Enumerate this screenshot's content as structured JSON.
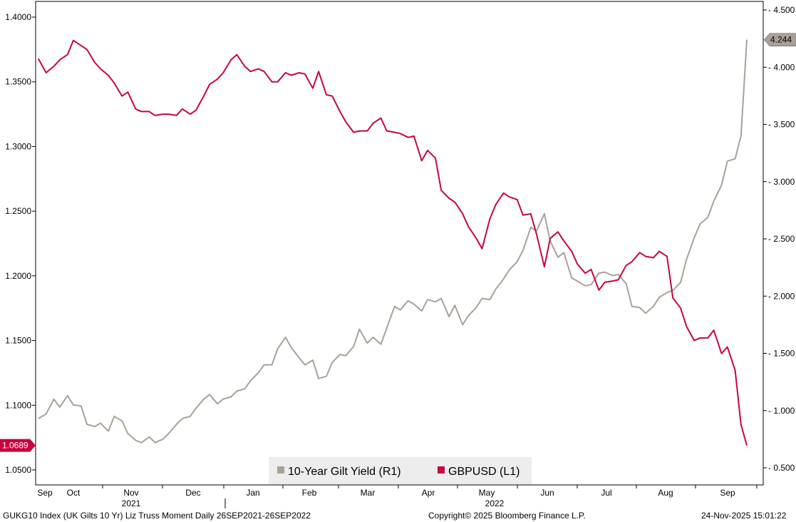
{
  "chart_data": {
    "type": "line",
    "x_months": [
      "Sep",
      "Oct",
      "Nov",
      "Dec",
      "Jan",
      "Feb",
      "Mar",
      "Apr",
      "May",
      "Jun",
      "Jul",
      "Aug",
      "Sep"
    ],
    "x_years": [
      "2021",
      "2022"
    ],
    "x_range": [
      "2021-09-26",
      "2022-09-26"
    ],
    "left_axis": {
      "ticks": [
        "1.4000",
        "1.3500",
        "1.3000",
        "1.2500",
        "1.2000",
        "1.1500",
        "1.1000",
        "1.0500"
      ],
      "ylim": [
        1.04,
        1.415
      ]
    },
    "right_axis": {
      "ticks": [
        "4.500",
        "4.000",
        "3.500",
        "3.000",
        "2.500",
        "2.000",
        "1.500",
        "1.000",
        "0.500"
      ],
      "ylim": [
        0.4,
        4.6
      ]
    },
    "series": [
      {
        "name": "10-Year Gilt Yield (R1)",
        "axis": "right",
        "color": "#a9a196",
        "last_label": "4.244",
        "x": [
          "2021-09-27",
          "2021-10-01",
          "2021-10-05",
          "2021-10-08",
          "2021-10-12",
          "2021-10-15",
          "2021-10-19",
          "2021-10-22",
          "2021-10-26",
          "2021-10-29",
          "2021-11-02",
          "2021-11-05",
          "2021-11-09",
          "2021-11-12",
          "2021-11-16",
          "2021-11-19",
          "2021-11-23",
          "2021-11-26",
          "2021-11-30",
          "2021-12-03",
          "2021-12-07",
          "2021-12-10",
          "2021-12-14",
          "2021-12-17",
          "2021-12-21",
          "2021-12-24",
          "2021-12-28",
          "2021-12-31",
          "2022-01-04",
          "2022-01-07",
          "2022-01-11",
          "2022-01-14",
          "2022-01-18",
          "2022-01-21",
          "2022-01-25",
          "2022-01-28",
          "2022-02-01",
          "2022-02-04",
          "2022-02-08",
          "2022-02-11",
          "2022-02-15",
          "2022-02-18",
          "2022-02-22",
          "2022-02-25",
          "2022-03-01",
          "2022-03-04",
          "2022-03-08",
          "2022-03-11",
          "2022-03-15",
          "2022-03-18",
          "2022-03-22",
          "2022-03-25",
          "2022-03-29",
          "2022-04-01",
          "2022-04-05",
          "2022-04-08",
          "2022-04-12",
          "2022-04-15",
          "2022-04-19",
          "2022-04-22",
          "2022-04-26",
          "2022-04-29",
          "2022-05-03",
          "2022-05-06",
          "2022-05-10",
          "2022-05-13",
          "2022-05-17",
          "2022-05-20",
          "2022-05-24",
          "2022-05-27",
          "2022-05-31",
          "2022-06-03",
          "2022-06-07",
          "2022-06-10",
          "2022-06-14",
          "2022-06-17",
          "2022-06-21",
          "2022-06-24",
          "2022-06-28",
          "2022-07-01",
          "2022-07-05",
          "2022-07-08",
          "2022-07-12",
          "2022-07-15",
          "2022-07-19",
          "2022-07-22",
          "2022-07-26",
          "2022-07-29",
          "2022-08-02",
          "2022-08-05",
          "2022-08-09",
          "2022-08-12",
          "2022-08-16",
          "2022-08-19",
          "2022-08-23",
          "2022-08-26",
          "2022-08-30",
          "2022-09-02",
          "2022-09-06",
          "2022-09-09",
          "2022-09-13",
          "2022-09-16",
          "2022-09-20",
          "2022-09-23",
          "2022-09-26"
        ],
        "y": [
          0.93,
          0.97,
          1.1,
          1.03,
          1.13,
          1.05,
          1.04,
          0.88,
          0.86,
          0.89,
          0.82,
          0.95,
          0.91,
          0.8,
          0.74,
          0.72,
          0.77,
          0.72,
          0.75,
          0.8,
          0.88,
          0.93,
          0.95,
          1.02,
          1.1,
          1.14,
          1.06,
          1.1,
          1.12,
          1.17,
          1.19,
          1.26,
          1.33,
          1.4,
          1.4,
          1.54,
          1.64,
          1.55,
          1.46,
          1.4,
          1.44,
          1.28,
          1.3,
          1.42,
          1.49,
          1.48,
          1.56,
          1.71,
          1.59,
          1.64,
          1.58,
          1.72,
          1.91,
          1.88,
          1.96,
          1.93,
          1.87,
          1.97,
          1.95,
          1.98,
          1.82,
          1.92,
          1.75,
          1.83,
          1.9,
          1.98,
          1.97,
          2.06,
          2.15,
          2.23,
          2.3,
          2.4,
          2.6,
          2.57,
          2.72,
          2.48,
          2.34,
          2.38,
          2.16,
          2.13,
          2.09,
          2.1,
          2.2,
          2.21,
          2.18,
          2.19,
          2.11,
          1.91,
          1.9,
          1.85,
          1.91,
          1.99,
          2.03,
          2.05,
          2.12,
          2.32,
          2.51,
          2.63,
          2.69,
          2.83,
          2.97,
          3.18,
          3.2,
          3.4,
          4.24
        ]
      },
      {
        "name": "GBPUSD (L1)",
        "axis": "left",
        "color": "#c7053e",
        "last_label": "1.0689",
        "x": [
          "2021-09-27",
          "2021-10-01",
          "2021-10-05",
          "2021-10-08",
          "2021-10-12",
          "2021-10-15",
          "2021-10-19",
          "2021-10-22",
          "2021-10-26",
          "2021-10-29",
          "2021-11-02",
          "2021-11-05",
          "2021-11-09",
          "2021-11-12",
          "2021-11-16",
          "2021-11-19",
          "2021-11-23",
          "2021-11-26",
          "2021-11-30",
          "2021-12-03",
          "2021-12-07",
          "2021-12-10",
          "2021-12-14",
          "2021-12-17",
          "2021-12-21",
          "2021-12-24",
          "2021-12-28",
          "2021-12-31",
          "2022-01-04",
          "2022-01-07",
          "2022-01-11",
          "2022-01-14",
          "2022-01-18",
          "2022-01-21",
          "2022-01-25",
          "2022-01-28",
          "2022-02-01",
          "2022-02-04",
          "2022-02-08",
          "2022-02-11",
          "2022-02-15",
          "2022-02-18",
          "2022-02-22",
          "2022-02-25",
          "2022-03-01",
          "2022-03-04",
          "2022-03-08",
          "2022-03-11",
          "2022-03-15",
          "2022-03-18",
          "2022-03-22",
          "2022-03-25",
          "2022-03-29",
          "2022-04-01",
          "2022-04-05",
          "2022-04-08",
          "2022-04-12",
          "2022-04-15",
          "2022-04-19",
          "2022-04-22",
          "2022-04-26",
          "2022-04-29",
          "2022-05-03",
          "2022-05-06",
          "2022-05-10",
          "2022-05-13",
          "2022-05-17",
          "2022-05-20",
          "2022-05-24",
          "2022-05-27",
          "2022-05-31",
          "2022-06-03",
          "2022-06-07",
          "2022-06-10",
          "2022-06-14",
          "2022-06-17",
          "2022-06-21",
          "2022-06-24",
          "2022-06-28",
          "2022-07-01",
          "2022-07-05",
          "2022-07-08",
          "2022-07-12",
          "2022-07-15",
          "2022-07-19",
          "2022-07-22",
          "2022-07-26",
          "2022-07-29",
          "2022-08-02",
          "2022-08-05",
          "2022-08-09",
          "2022-08-12",
          "2022-08-16",
          "2022-08-19",
          "2022-08-23",
          "2022-08-26",
          "2022-08-30",
          "2022-09-02",
          "2022-09-06",
          "2022-09-09",
          "2022-09-13",
          "2022-09-16",
          "2022-09-20",
          "2022-09-23",
          "2022-09-26"
        ],
        "y": [
          1.368,
          1.357,
          1.362,
          1.367,
          1.371,
          1.382,
          1.378,
          1.375,
          1.365,
          1.36,
          1.355,
          1.349,
          1.339,
          1.342,
          1.329,
          1.327,
          1.327,
          1.324,
          1.325,
          1.325,
          1.324,
          1.329,
          1.325,
          1.328,
          1.339,
          1.348,
          1.352,
          1.357,
          1.367,
          1.371,
          1.362,
          1.358,
          1.36,
          1.358,
          1.35,
          1.35,
          1.357,
          1.355,
          1.357,
          1.356,
          1.345,
          1.358,
          1.34,
          1.339,
          1.327,
          1.319,
          1.311,
          1.312,
          1.312,
          1.318,
          1.322,
          1.312,
          1.311,
          1.31,
          1.307,
          1.308,
          1.289,
          1.297,
          1.291,
          1.266,
          1.26,
          1.257,
          1.248,
          1.238,
          1.229,
          1.221,
          1.244,
          1.255,
          1.264,
          1.261,
          1.259,
          1.247,
          1.248,
          1.232,
          1.207,
          1.229,
          1.234,
          1.227,
          1.219,
          1.209,
          1.202,
          1.205,
          1.189,
          1.195,
          1.196,
          1.197,
          1.208,
          1.211,
          1.218,
          1.215,
          1.214,
          1.219,
          1.215,
          1.183,
          1.175,
          1.161,
          1.15,
          1.152,
          1.152,
          1.158,
          1.14,
          1.145,
          1.127,
          1.085,
          1.0689
        ]
      }
    ],
    "legend": {
      "placement": "bottom-center"
    },
    "grid": false
  },
  "colors": {
    "yield": "#a9a196",
    "gbpusd": "#c7053e",
    "legend_bg": "#ededed"
  },
  "footer": {
    "left": "GUKG10 Index (UK Gilts 10 Yr) Liz Truss Moment Daily 26SEP2021-26SEP2022",
    "center": "Copyright© 2025 Bloomberg Finance L.P.",
    "right": "24-Nov-2025 15:01:22"
  }
}
